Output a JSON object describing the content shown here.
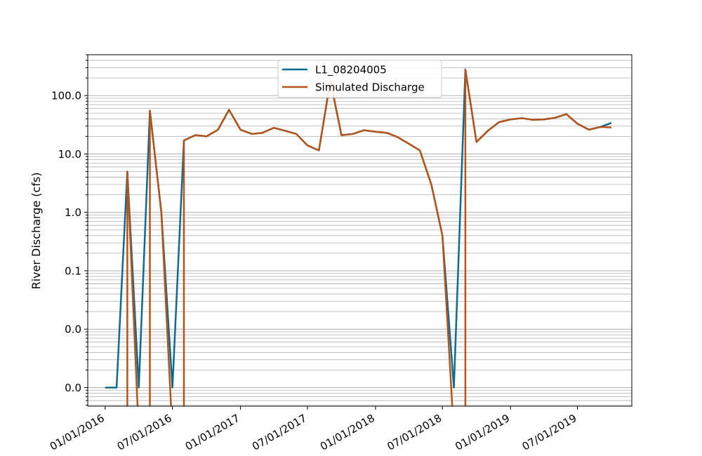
{
  "chart_data": {
    "type": "line",
    "title": "",
    "xlabel": "",
    "ylabel": "River Discharge (cfs)",
    "yscale": "log",
    "ylim": [
      0.00048,
      500
    ],
    "xlim": [
      "2015-11-15",
      "2019-11-25"
    ],
    "grid": "y-major-and-minor",
    "legend_position": "top-center",
    "x_tick_labels": [
      "01/01/2016",
      "07/01/2016",
      "01/01/2017",
      "07/01/2017",
      "01/01/2018",
      "07/01/2018",
      "01/01/2019",
      "07/01/2019"
    ],
    "x_ticks": [
      "2016-01-01",
      "2016-07-01",
      "2017-01-01",
      "2017-07-01",
      "2018-01-01",
      "2018-07-01",
      "2019-01-01",
      "2019-07-01"
    ],
    "y_tick_labels": [
      "0.0",
      "0.0",
      "0.1",
      "1.0",
      "10.0",
      "100.0"
    ],
    "y_ticks": [
      0.001,
      0.01,
      0.1,
      1,
      10,
      100
    ],
    "x": [
      "2016-01-01",
      "2016-02-01",
      "2016-03-01",
      "2016-04-01",
      "2016-05-01",
      "2016-06-01",
      "2016-07-01",
      "2016-08-01",
      "2016-09-01",
      "2016-10-01",
      "2016-11-01",
      "2016-12-01",
      "2017-01-01",
      "2017-02-01",
      "2017-03-01",
      "2017-04-01",
      "2017-05-01",
      "2017-06-01",
      "2017-07-01",
      "2017-08-01",
      "2017-09-01",
      "2017-10-01",
      "2017-11-01",
      "2017-12-01",
      "2018-01-01",
      "2018-02-01",
      "2018-03-01",
      "2018-04-01",
      "2018-05-01",
      "2018-06-01",
      "2018-07-01",
      "2018-08-01",
      "2018-09-01",
      "2018-10-01",
      "2018-11-01",
      "2018-12-01",
      "2019-01-01",
      "2019-02-01",
      "2019-03-01",
      "2019-04-01",
      "2019-05-01",
      "2019-06-01",
      "2019-07-01",
      "2019-08-01",
      "2019-09-01",
      "2019-10-01"
    ],
    "series": [
      {
        "name": "L1_08204005",
        "color": "#0e6a8e",
        "values": [
          0.001,
          0.001,
          5.0,
          0.001,
          55,
          1.0,
          0.001,
          17,
          21,
          20,
          26,
          57,
          26,
          22,
          23,
          28,
          25,
          22,
          14,
          11.5,
          180,
          21,
          22,
          25.5,
          24,
          23,
          19.5,
          15,
          11.5,
          3.0,
          0.4,
          0.001,
          280,
          16,
          25,
          35,
          39,
          41,
          38.5,
          39,
          41.5,
          48,
          33,
          26,
          29,
          34
        ]
      },
      {
        "name": "Simulated Discharge",
        "color": "#b5541a",
        "values": [
          null,
          null,
          5.0,
          null,
          55,
          1.0,
          null,
          17,
          21,
          20,
          26,
          57,
          26,
          22,
          23,
          28,
          25,
          22,
          14,
          11.5,
          180,
          21,
          22,
          25.5,
          24,
          23,
          19.5,
          15,
          11.5,
          3.0,
          0.4,
          null,
          280,
          16,
          25,
          35,
          39,
          41,
          38.5,
          39,
          41.5,
          48,
          33,
          26,
          29,
          28.5
        ]
      }
    ]
  }
}
